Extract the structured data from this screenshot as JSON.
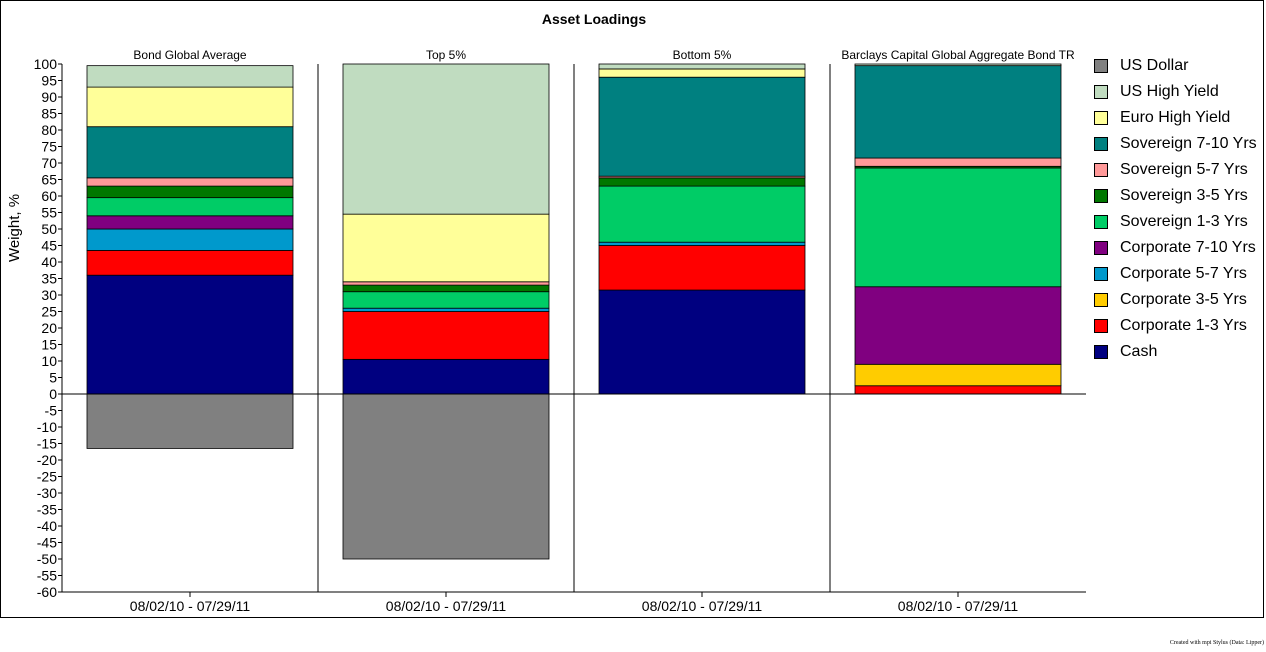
{
  "chart_data": {
    "type": "bar",
    "stacked": true,
    "title": "Asset Loadings",
    "ylabel": "Weight, %",
    "ylim": [
      -60,
      100
    ],
    "ytick_step": 5,
    "panels": [
      {
        "title": "Bond Global Average",
        "xlabel": "08/02/10 - 07/29/11"
      },
      {
        "title": "Top 5%",
        "xlabel": "08/02/10 - 07/29/11"
      },
      {
        "title": "Bottom 5%",
        "xlabel": "08/02/10 - 07/29/11"
      },
      {
        "title": "Barclays Capital Global Aggregate Bond TR",
        "xlabel": "08/02/10 - 07/29/11"
      }
    ],
    "series": [
      {
        "name": "Cash",
        "color": "#000080",
        "values": [
          36,
          10.5,
          31.5,
          0
        ]
      },
      {
        "name": "Corporate 1-3 Yrs",
        "color": "#ff0000",
        "values": [
          7.5,
          14.5,
          13.5,
          2.5
        ]
      },
      {
        "name": "Corporate 3-5 Yrs",
        "color": "#ffcc00",
        "values": [
          0,
          0,
          0,
          6.5
        ]
      },
      {
        "name": "Corporate 5-7 Yrs",
        "color": "#0099cc",
        "values": [
          6.5,
          1,
          1,
          0
        ]
      },
      {
        "name": "Corporate 7-10 Yrs",
        "color": "#800080",
        "values": [
          4,
          0,
          0,
          23.5
        ]
      },
      {
        "name": "Sovereign 1-3 Yrs",
        "color": "#00cc66",
        "values": [
          5.5,
          5,
          17,
          36
        ]
      },
      {
        "name": "Sovereign 3-5 Yrs",
        "color": "#007700",
        "values": [
          3.5,
          2,
          2.5,
          0.5
        ]
      },
      {
        "name": "Sovereign 5-7 Yrs",
        "color": "#ff9999",
        "values": [
          2.5,
          1,
          0.5,
          2.5
        ]
      },
      {
        "name": "Sovereign 7-10 Yrs",
        "color": "#008080",
        "values": [
          15.5,
          0,
          30,
          28
        ]
      },
      {
        "name": "Euro High Yield",
        "color": "#ffff99",
        "values": [
          12,
          20.5,
          2.5,
          0
        ]
      },
      {
        "name": "US High Yield",
        "color": "#c0dcc0",
        "values": [
          6.5,
          45.5,
          1.5,
          0.5
        ]
      },
      {
        "name": "US Dollar",
        "color": "#808080",
        "values": [
          -16.5,
          -50,
          0,
          0
        ]
      }
    ],
    "legend_order": [
      "US Dollar",
      "US High Yield",
      "Euro High Yield",
      "Sovereign 7-10 Yrs",
      "Sovereign 5-7 Yrs",
      "Sovereign 3-5 Yrs",
      "Sovereign 1-3 Yrs",
      "Corporate 7-10 Yrs",
      "Corporate 5-7 Yrs",
      "Corporate 3-5 Yrs",
      "Corporate 1-3 Yrs",
      "Cash"
    ],
    "legend_position": "right",
    "grid": false
  },
  "footer": {
    "credit": "Created with mpi Stylus (Data: Lipper)"
  }
}
